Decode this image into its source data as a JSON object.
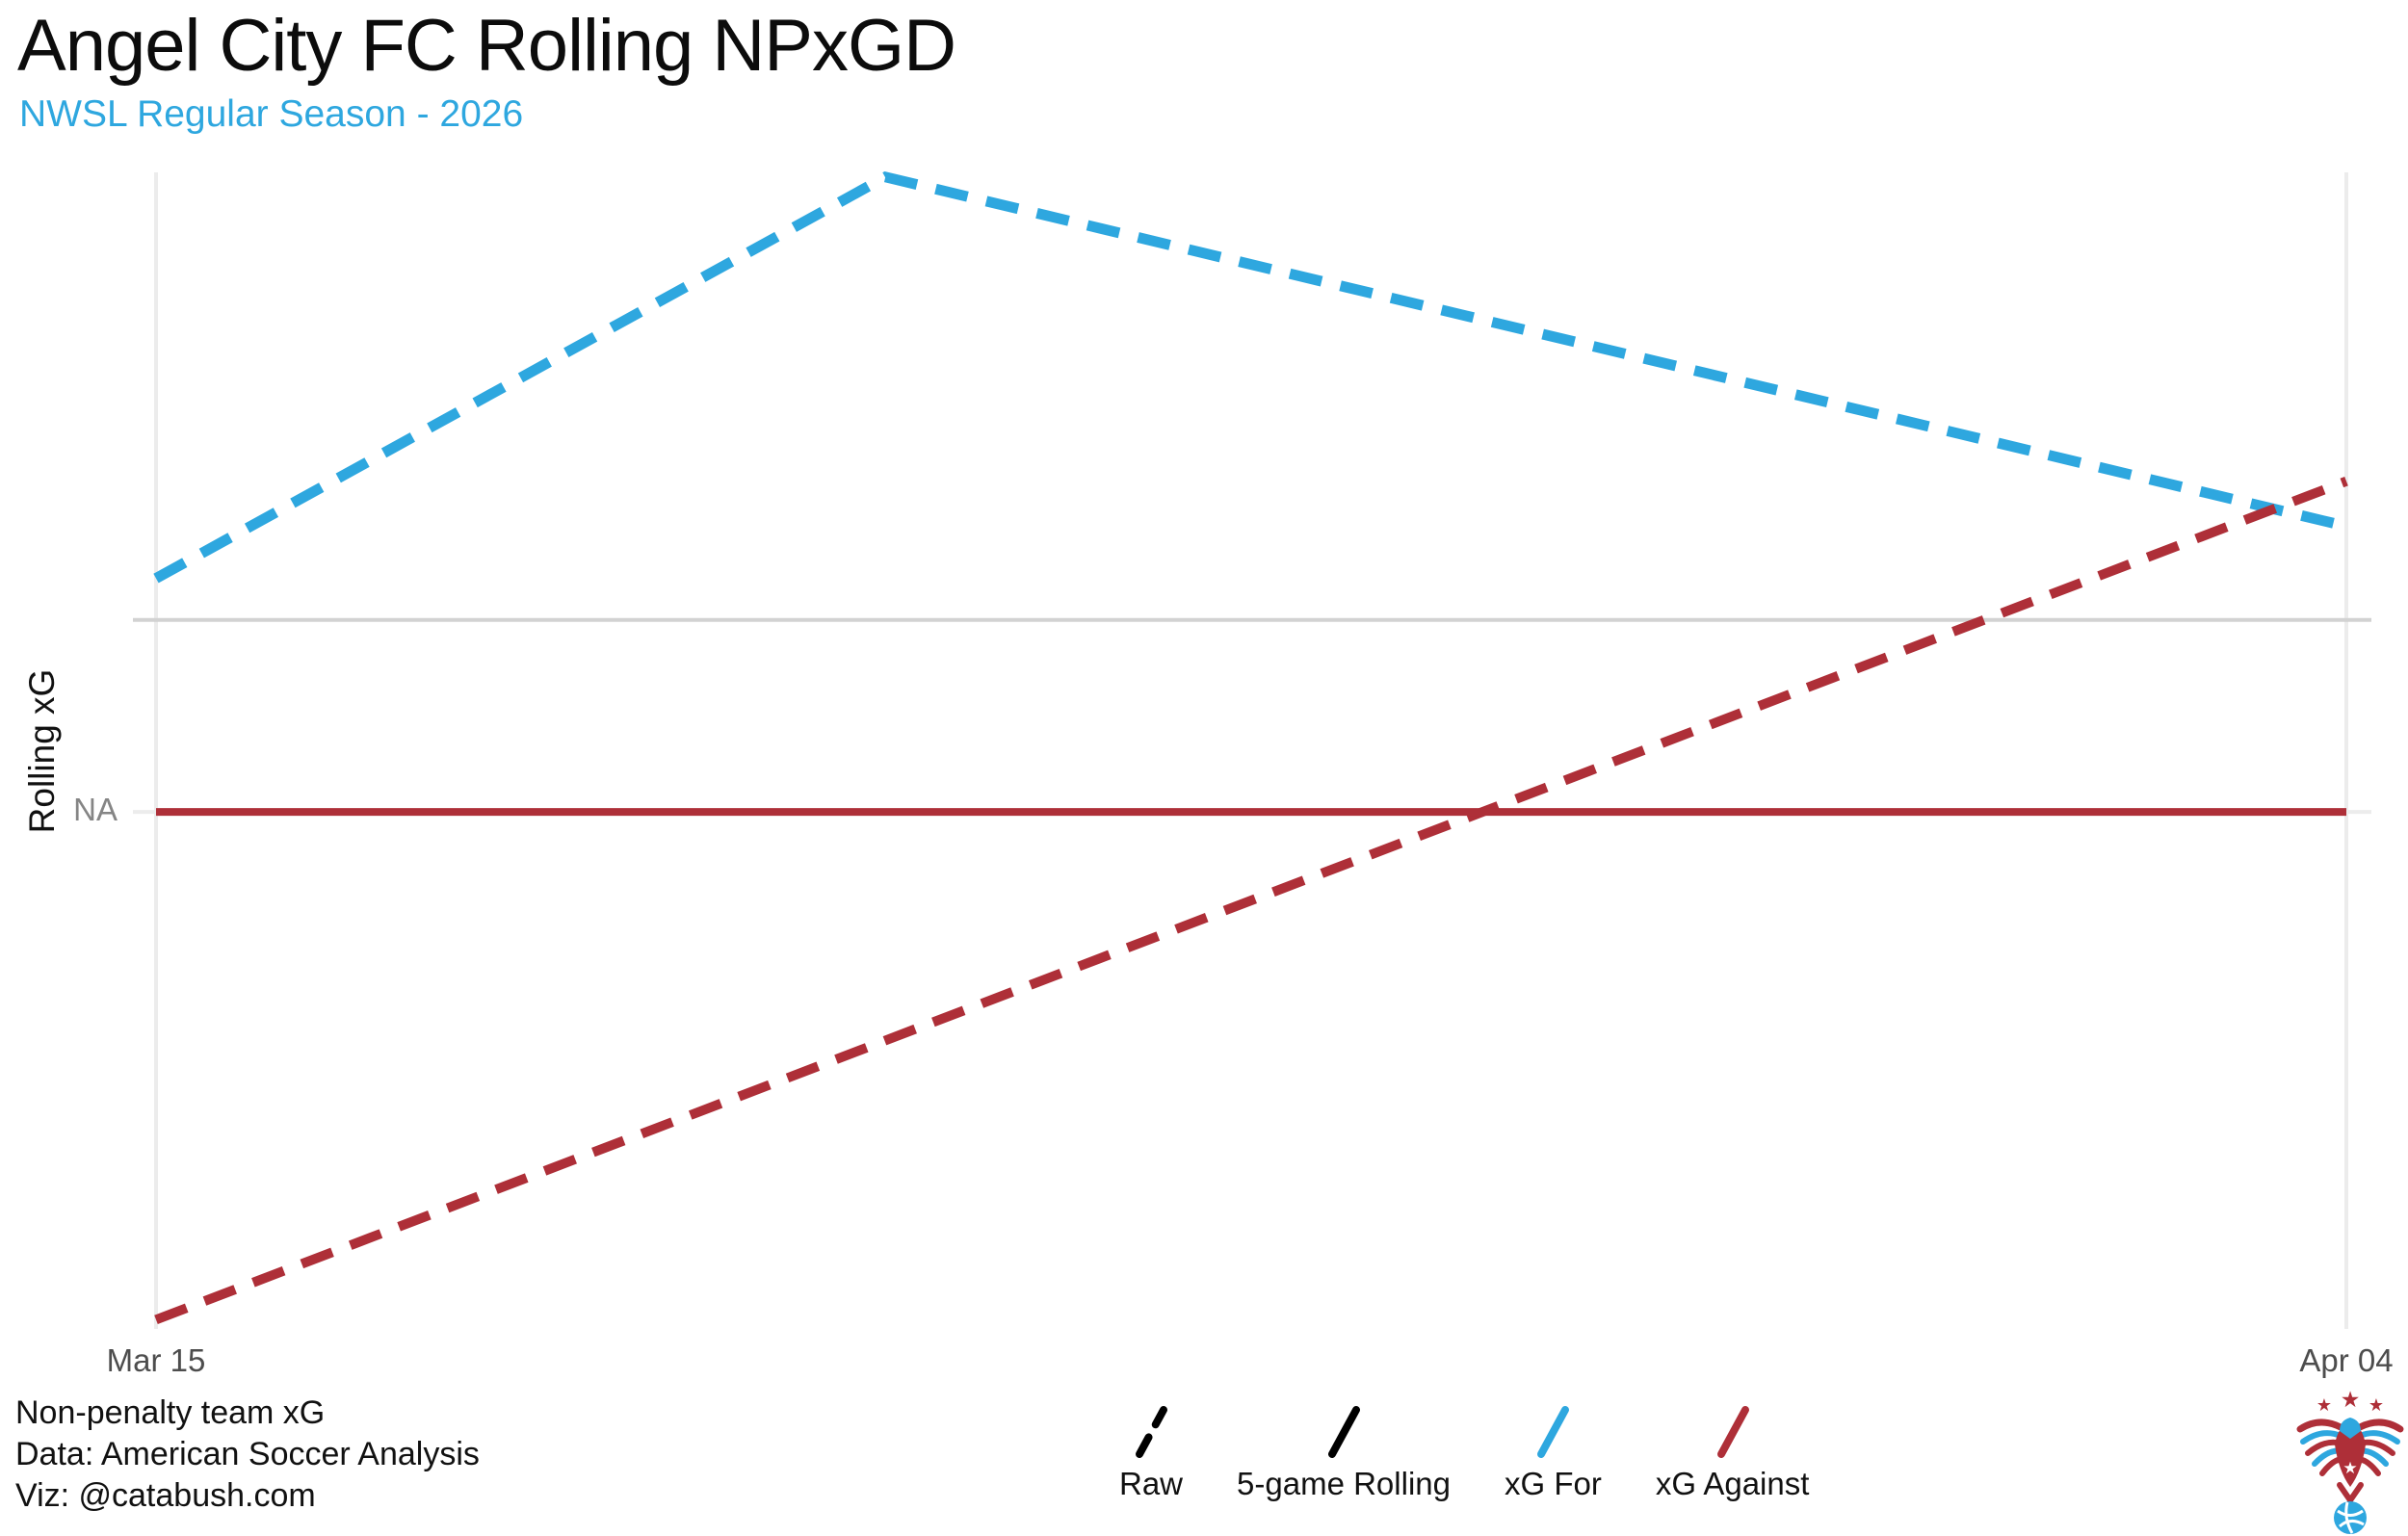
{
  "header": {
    "title": "Angel City FC Rolling NPxGD",
    "subtitle": "NWSL Regular Season - 2026"
  },
  "axes": {
    "y_label": "Rolling xG",
    "y_tick": "NA",
    "x_tick_left": "Mar 15",
    "x_tick_right": "Apr 04"
  },
  "chart_data": {
    "type": "line",
    "title": "Angel City FC Rolling NPxGD",
    "subtitle": "NWSL Regular Season - 2026",
    "xlabel": "",
    "ylabel": "Rolling xG",
    "x_tick_labels": [
      "Mar 15",
      "Apr 04"
    ],
    "y_tick_labels": [
      "NA"
    ],
    "x_axis": {
      "start": "Mar 15",
      "end": "Apr 04",
      "span_days": 20
    },
    "y_axis_note": "No numeric y scale shown (only an NA tick); point heights below are fractions of plot-panel height, 0 = top, 1 = bottom",
    "grid": {
      "vertical_gridlines_x_frac": [
        0,
        1
      ],
      "zero_reference_line_y_frac": 0.387,
      "na_tick_y_frac": 0.553
    },
    "legend_position": "bottom",
    "series": [
      {
        "name": "xG For",
        "role": "raw",
        "style": "dashed",
        "color": "#2EA7DF",
        "points_x_frac": [
          0,
          0.333,
          1
        ],
        "points_y_frac": [
          0.351,
          0.004,
          0.306
        ]
      },
      {
        "name": "xG Against",
        "role": "raw",
        "style": "dashed",
        "color": "#AE2F38",
        "points_x_frac": [
          0,
          1
        ],
        "points_y_frac": [
          0.992,
          0.267
        ]
      },
      {
        "name": "5-game Rolling",
        "role": "rolling",
        "style": "solid",
        "color": "#AE2F38",
        "value_label": "NA",
        "points_x_frac": [
          0,
          1
        ],
        "points_y_frac": [
          0.553,
          0.553
        ]
      }
    ]
  },
  "legend": {
    "items": [
      {
        "label": "Raw",
        "color": "#000000",
        "style": "dashed"
      },
      {
        "label": "5-game Rolling",
        "color": "#000000",
        "style": "solid"
      },
      {
        "label": "xG For",
        "color": "#2EA7DF",
        "style": "solid"
      },
      {
        "label": "xG Against",
        "color": "#AE2F38",
        "style": "solid"
      }
    ]
  },
  "footer": {
    "lines": [
      "Non-penalty team xG",
      "Data: American Soccer Analysis",
      "Viz: @catabush.com"
    ]
  },
  "colors": {
    "blue": "#2EA7DF",
    "red": "#AE2F38",
    "grid": "#ECECEC",
    "zero_line": "#D2D2D2",
    "axis_text": "#4D4D4D",
    "na_text": "#858585"
  }
}
